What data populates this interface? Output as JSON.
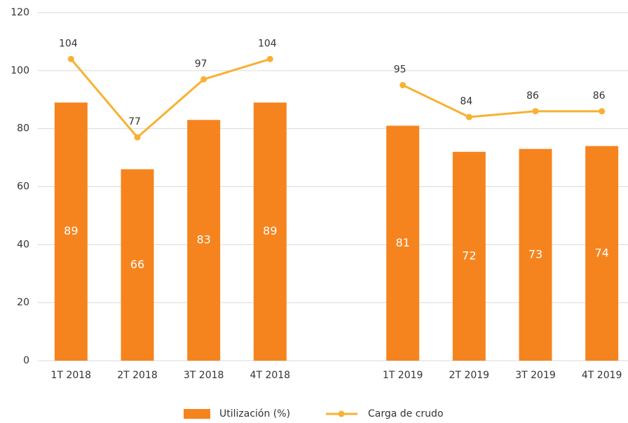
{
  "chart_data": {
    "type": "combo",
    "categories": [
      "1T 2018",
      "2T 2018",
      "3T 2018",
      "4T 2018",
      null,
      "1T 2019",
      "2T 2019",
      "3T 2019",
      "4T 2019"
    ],
    "series": [
      {
        "name": "Utilización (%)",
        "type": "bar",
        "color": "#f5841f",
        "values": [
          89,
          66,
          83,
          89,
          null,
          81,
          72,
          73,
          74
        ]
      },
      {
        "name": "Carga de crudo",
        "type": "line",
        "color": "#f8b133",
        "values": [
          104,
          77,
          97,
          104,
          null,
          95,
          84,
          86,
          86
        ]
      }
    ],
    "ylim": [
      0,
      120
    ],
    "yticks": [
      0,
      20,
      40,
      60,
      80,
      100,
      120
    ],
    "grid": true,
    "legend": "bottom"
  }
}
